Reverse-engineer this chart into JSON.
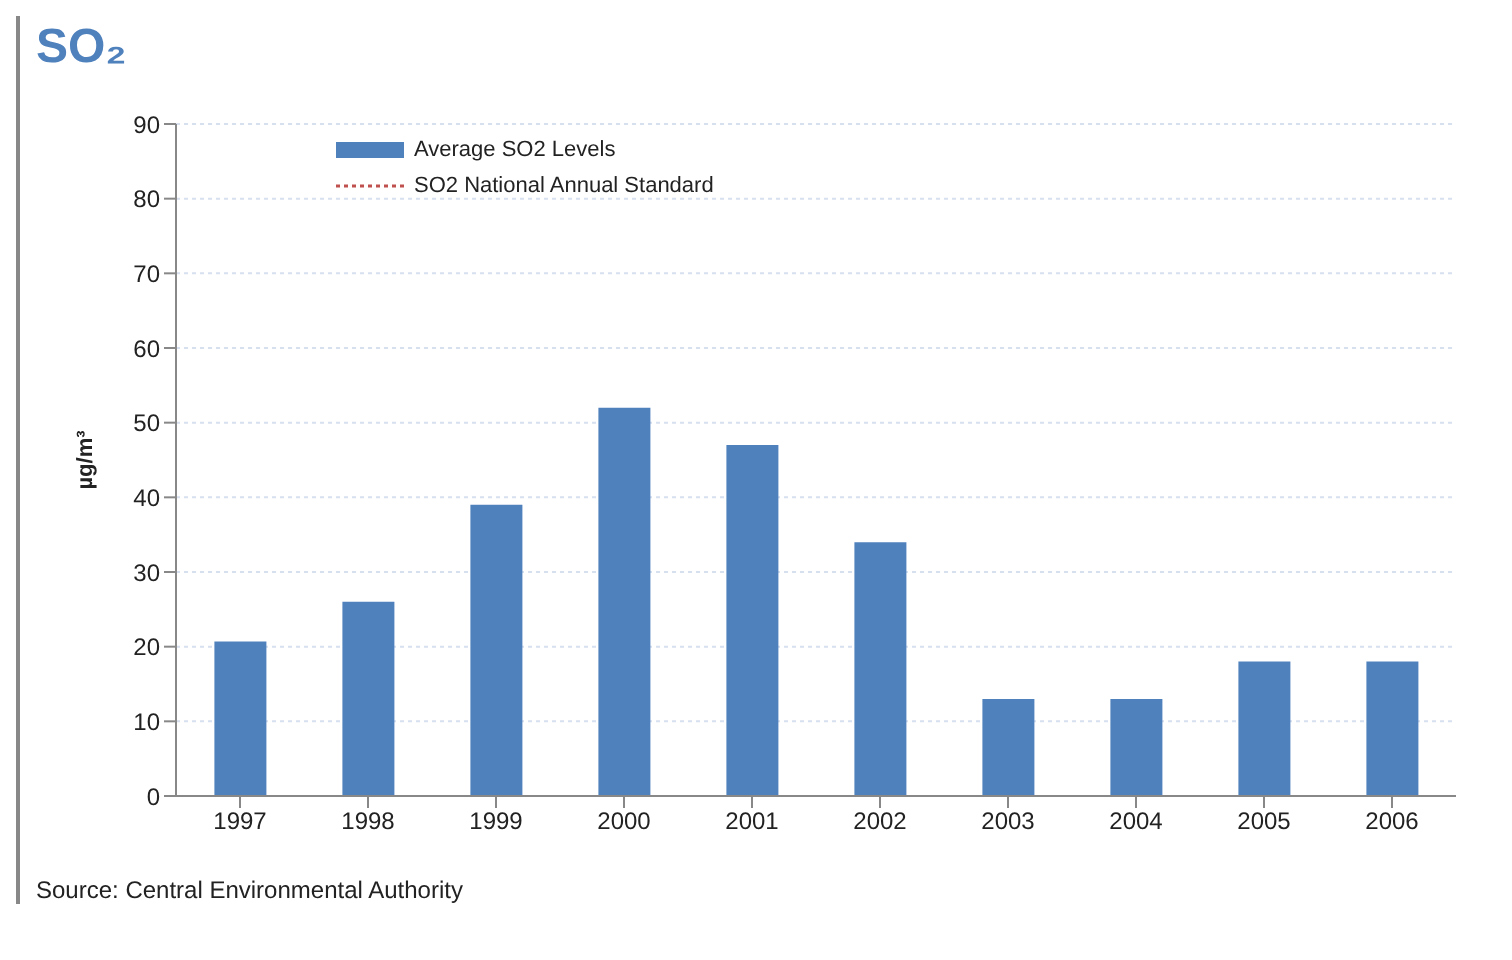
{
  "chart_data": {
    "type": "bar",
    "title": "SO₂",
    "ylabel": "µg/m³",
    "categories": [
      "1997",
      "1998",
      "1999",
      "2000",
      "2001",
      "2002",
      "2003",
      "2004",
      "2005",
      "2006"
    ],
    "series": [
      {
        "name": "Average SO2 Levels",
        "color": "#4f81bd",
        "values": [
          20.7,
          26,
          39,
          52,
          47,
          34,
          13,
          13,
          18,
          18
        ]
      },
      {
        "name": "SO2 National Annual Standard",
        "type": "line",
        "color": "#c0504d",
        "line_style": "dotted",
        "values": [
          null,
          null,
          null,
          null,
          null,
          null,
          null,
          null,
          null,
          null
        ]
      }
    ],
    "ylim": [
      0,
      90
    ],
    "yticks": [
      0,
      10,
      20,
      30,
      40,
      50,
      60,
      70,
      80,
      90
    ],
    "grid": "y",
    "legend": "top",
    "annotations": [
      "Source: Central Environmental Authority"
    ]
  }
}
